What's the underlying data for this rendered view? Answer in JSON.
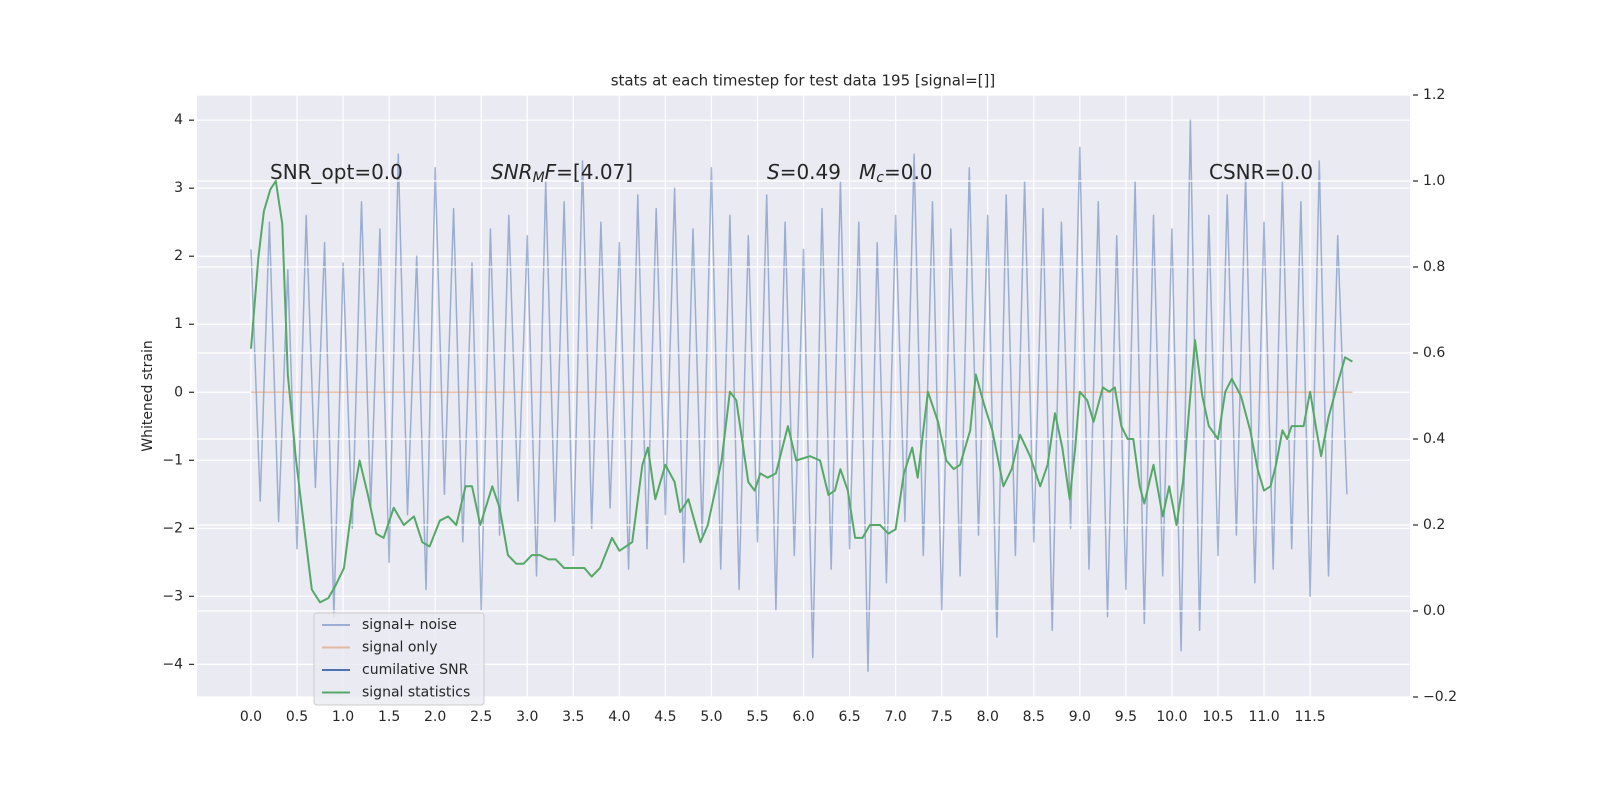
{
  "chart_data": {
    "type": "line",
    "title": "stats at each timestep for test data 195 [signal=[]]",
    "ylabel": "Whitened strain",
    "annotations": [
      {
        "parts": [
          {
            "text": "SNR_opt=0.0"
          }
        ]
      },
      {
        "parts": [
          {
            "text": "SNR",
            "style": "italic"
          },
          {
            "text": "M",
            "style": "italic-sub"
          },
          {
            "text": "F",
            "style": "italic"
          },
          {
            "text": "=[4.07]"
          }
        ]
      },
      {
        "parts": [
          {
            "text": "S",
            "style": "italic"
          },
          {
            "text": "=0.49"
          }
        ]
      },
      {
        "parts": [
          {
            "text": "M",
            "style": "italic"
          },
          {
            "text": "c",
            "style": "italic-sub"
          },
          {
            "text": "=0.0"
          }
        ]
      },
      {
        "parts": [
          {
            "text": "CSNR=0.0"
          }
        ]
      }
    ],
    "xlim": [
      -0.586,
      12.585
    ],
    "ylim": [
      -4.48,
      4.37
    ],
    "y2lim": [
      -0.2,
      1.2
    ],
    "xticks": [
      {
        "value": 0,
        "label": "0.0"
      },
      0.5,
      {
        "value": 1,
        "label": "1.0"
      },
      1.5,
      {
        "value": 2,
        "label": "2.0"
      },
      2.5,
      {
        "value": 3,
        "label": "3.0"
      },
      3.5,
      {
        "value": 4,
        "label": "4.0"
      },
      4.5,
      {
        "value": 5,
        "label": "5.0"
      },
      5.5,
      {
        "value": 6,
        "label": "6.0"
      },
      6.5,
      {
        "value": 7,
        "label": "7.0"
      },
      7.5,
      {
        "value": 8,
        "label": "8.0"
      },
      8.5,
      {
        "value": 9,
        "label": "9.0"
      },
      9.5,
      {
        "value": 10,
        "label": "10.0"
      },
      10.5,
      {
        "value": 11,
        "label": "11.0"
      },
      11.5
    ],
    "yticks": [
      {
        "value": -4,
        "label": "−4"
      },
      {
        "value": -3,
        "label": "−3"
      },
      {
        "value": -2,
        "label": "−2"
      },
      {
        "value": -1,
        "label": "−1"
      },
      0,
      1,
      2,
      3,
      4
    ],
    "y2ticks": [
      {
        "value": -0.2,
        "label": "−0.2"
      },
      {
        "value": 0,
        "label": "0.0"
      },
      0.2,
      0.4,
      0.6,
      0.8,
      {
        "value": 1,
        "label": "1.0"
      },
      1.2
    ],
    "grid": true,
    "legend": "lower left",
    "series": [
      {
        "name": "signal+ noise",
        "color": "#4c72b0",
        "alpha": 0.5,
        "x": [
          0.0,
          0.1,
          0.2,
          0.3,
          0.4,
          0.5,
          0.6,
          0.7,
          0.8,
          0.9,
          1.0,
          1.1,
          1.2,
          1.3,
          1.4,
          1.5,
          1.6,
          1.7,
          1.8,
          1.9,
          2.0,
          2.1,
          2.2,
          2.3,
          2.4,
          2.5,
          2.6,
          2.7,
          2.8,
          2.9,
          3.0,
          3.1,
          3.2,
          3.3,
          3.4,
          3.5,
          3.6,
          3.7,
          3.8,
          3.9,
          4.0,
          4.1,
          4.2,
          4.3,
          4.4,
          4.5,
          4.6,
          4.7,
          4.8,
          4.9,
          5.0,
          5.1,
          5.2,
          5.3,
          5.4,
          5.5,
          5.6,
          5.7,
          5.8,
          5.9,
          6.0,
          6.1,
          6.2,
          6.3,
          6.4,
          6.5,
          6.6,
          6.7,
          6.8,
          6.9,
          7.0,
          7.1,
          7.2,
          7.3,
          7.4,
          7.5,
          7.6,
          7.7,
          7.8,
          7.9,
          8.0,
          8.1,
          8.2,
          8.3,
          8.4,
          8.5,
          8.6,
          8.7,
          8.8,
          8.9,
          9.0,
          9.1,
          9.2,
          9.3,
          9.4,
          9.5,
          9.6,
          9.7,
          9.8,
          9.9,
          10.0,
          10.1,
          10.2,
          10.3,
          10.4,
          10.5,
          10.6,
          10.7,
          10.8,
          10.9,
          11.0,
          11.1,
          11.2,
          11.3,
          11.4,
          11.5,
          11.6,
          11.7,
          11.8,
          11.9
        ],
        "values": [
          2.1,
          -1.6,
          2.5,
          -1.9,
          1.8,
          -2.3,
          2.6,
          -1.4,
          2.2,
          -3.3,
          1.9,
          -2.0,
          2.8,
          -1.7,
          2.4,
          -2.5,
          3.5,
          -1.8,
          2.0,
          -2.9,
          3.3,
          -1.5,
          2.7,
          -2.2,
          1.9,
          -3.2,
          2.4,
          -2.1,
          2.6,
          -1.6,
          2.3,
          -2.7,
          3.1,
          -1.9,
          2.8,
          -2.4,
          3.4,
          -2.0,
          2.5,
          -1.7,
          2.2,
          -2.6,
          2.9,
          -2.3,
          2.7,
          -1.8,
          3.0,
          -2.5,
          2.4,
          -2.1,
          3.3,
          -2.6,
          2.6,
          -2.9,
          2.3,
          -2.2,
          2.9,
          -3.2,
          2.5,
          -2.4,
          2.1,
          -3.9,
          2.7,
          -2.6,
          3.1,
          -2.3,
          2.5,
          -4.1,
          2.2,
          -2.8,
          2.6,
          -1.9,
          3.5,
          -2.4,
          2.8,
          -3.2,
          2.4,
          -2.7,
          3.3,
          -2.1,
          2.6,
          -3.6,
          2.9,
          -2.4,
          3.1,
          -2.2,
          2.7,
          -3.5,
          2.5,
          -2.0,
          3.6,
          -2.6,
          2.8,
          -3.3,
          2.3,
          -2.9,
          3.1,
          -3.4,
          2.6,
          -2.7,
          2.4,
          -3.8,
          4.0,
          -3.5,
          2.6,
          -2.4,
          2.9,
          -2.1,
          3.2,
          -2.8,
          2.5,
          -2.6,
          3.1,
          -2.3,
          2.8,
          -3.0,
          3.4,
          -2.7,
          2.3,
          -1.5
        ]
      },
      {
        "name": "signal only",
        "color": "#dd8452",
        "alpha": 0.5,
        "x": [
          0,
          11.96
        ],
        "values": [
          0,
          0
        ]
      },
      {
        "name": "cumilative SNR",
        "color": "#4c72b0",
        "x": [],
        "values": []
      },
      {
        "name": "signal statistics",
        "color": "#55a868",
        "axis": "y2",
        "x": [
          0,
          0.08,
          0.14,
          0.21,
          0.27,
          0.34,
          0.4,
          0.49,
          0.58,
          0.66,
          0.75,
          0.84,
          0.92,
          1.01,
          1.1,
          1.18,
          1.27,
          1.36,
          1.44,
          1.55,
          1.66,
          1.77,
          1.86,
          1.94,
          2.05,
          2.14,
          2.23,
          2.33,
          2.4,
          2.49,
          2.62,
          2.7,
          2.79,
          2.88,
          2.96,
          3.05,
          3.14,
          3.23,
          3.31,
          3.4,
          3.62,
          3.7,
          3.79,
          3.92,
          4.0,
          4.14,
          4.25,
          4.31,
          4.39,
          4.5,
          4.6,
          4.66,
          4.75,
          4.88,
          4.96,
          5.11,
          5.2,
          5.27,
          5.4,
          5.47,
          5.53,
          5.61,
          5.7,
          5.83,
          5.92,
          6.07,
          6.18,
          6.27,
          6.34,
          6.4,
          6.48,
          6.56,
          6.64,
          6.72,
          6.83,
          6.92,
          7.0,
          7.09,
          7.18,
          7.24,
          7.35,
          7.46,
          7.55,
          7.63,
          7.7,
          7.81,
          7.87,
          7.96,
          8.05,
          8.17,
          8.26,
          8.35,
          8.46,
          8.57,
          8.65,
          8.73,
          8.81,
          8.89,
          8.95,
          9.0,
          9.08,
          9.15,
          9.25,
          9.32,
          9.38,
          9.45,
          9.52,
          9.58,
          9.65,
          9.7,
          9.8,
          9.9,
          9.97,
          10.05,
          10.12,
          10.25,
          10.33,
          10.4,
          10.5,
          10.58,
          10.65,
          10.75,
          10.85,
          10.93,
          11.0,
          11.07,
          11.13,
          11.2,
          11.25,
          11.3,
          11.43,
          11.5,
          11.57,
          11.62,
          11.7,
          11.8,
          11.88,
          11.96
        ],
        "values": [
          0.61,
          0.82,
          0.93,
          0.98,
          1.0,
          0.9,
          0.55,
          0.35,
          0.19,
          0.05,
          0.02,
          0.03,
          0.06,
          0.1,
          0.25,
          0.35,
          0.27,
          0.18,
          0.17,
          0.24,
          0.2,
          0.22,
          0.16,
          0.15,
          0.21,
          0.22,
          0.2,
          0.29,
          0.29,
          0.2,
          0.29,
          0.24,
          0.13,
          0.11,
          0.11,
          0.13,
          0.13,
          0.12,
          0.12,
          0.1,
          0.1,
          0.08,
          0.1,
          0.17,
          0.14,
          0.16,
          0.34,
          0.38,
          0.26,
          0.34,
          0.3,
          0.23,
          0.26,
          0.16,
          0.2,
          0.35,
          0.51,
          0.49,
          0.3,
          0.28,
          0.32,
          0.31,
          0.32,
          0.43,
          0.35,
          0.36,
          0.35,
          0.27,
          0.28,
          0.33,
          0.28,
          0.17,
          0.17,
          0.2,
          0.2,
          0.18,
          0.19,
          0.32,
          0.38,
          0.31,
          0.51,
          0.44,
          0.35,
          0.33,
          0.34,
          0.42,
          0.55,
          0.48,
          0.42,
          0.29,
          0.33,
          0.41,
          0.36,
          0.29,
          0.34,
          0.46,
          0.38,
          0.26,
          0.38,
          0.51,
          0.49,
          0.44,
          0.52,
          0.51,
          0.52,
          0.43,
          0.4,
          0.4,
          0.29,
          0.25,
          0.34,
          0.22,
          0.29,
          0.2,
          0.3,
          0.63,
          0.5,
          0.43,
          0.4,
          0.51,
          0.54,
          0.5,
          0.42,
          0.33,
          0.28,
          0.29,
          0.34,
          0.42,
          0.4,
          0.43,
          0.43,
          0.51,
          0.42,
          0.36,
          0.45,
          0.53,
          0.59,
          0.58
        ]
      }
    ]
  }
}
